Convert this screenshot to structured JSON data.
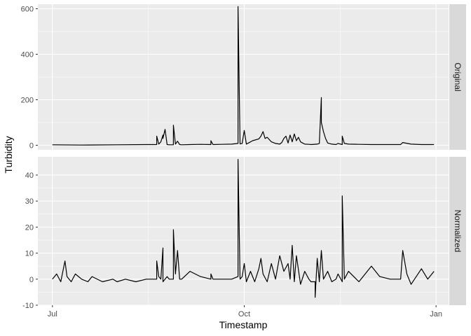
{
  "colors": {
    "panel_background": "#ebebeb",
    "strip_background": "#d9d9d9",
    "grid_major": "#ffffff",
    "line": "#000000"
  },
  "chart_data": {
    "type": "line",
    "facet_layout": "vertical, strip labels on right",
    "xlabel": "Timestamp",
    "ylabel": "Turbidity",
    "x_ticks": [
      "Jul",
      "Oct",
      "Jan"
    ],
    "grid": true,
    "panels": [
      {
        "strip_label": "Original",
        "ylim": [
          -20,
          620
        ],
        "y_ticks": [
          0,
          200,
          400,
          600
        ],
        "series": [
          {
            "x": [
              "2023-07-01",
              "2023-07-15",
              "2023-08-01",
              "2023-08-15",
              "2023-08-20",
              "2023-08-20",
              "2023-08-21",
              "2023-08-22",
              "2023-08-23",
              "2023-08-23",
              "2023-08-24",
              "2023-08-25",
              "2023-08-26",
              "2023-08-28",
              "2023-08-28",
              "2023-08-29",
              "2023-08-30",
              "2023-08-31",
              "2023-09-01",
              "2023-09-05",
              "2023-09-10",
              "2023-09-15",
              "2023-09-15",
              "2023-09-16",
              "2023-09-20",
              "2023-09-25",
              "2023-09-28",
              "2023-09-28",
              "2023-09-29",
              "2023-09-30",
              "2023-10-01",
              "2023-10-02",
              "2023-10-03",
              "2023-10-05",
              "2023-10-08",
              "2023-10-09",
              "2023-10-10",
              "2023-10-11",
              "2023-10-12",
              "2023-10-14",
              "2023-10-16",
              "2023-10-18",
              "2023-10-19",
              "2023-10-20",
              "2023-10-21",
              "2023-10-22",
              "2023-10-23",
              "2023-10-24",
              "2023-10-25",
              "2023-10-26",
              "2023-10-27",
              "2023-10-28",
              "2023-10-29",
              "2023-10-30",
              "2023-11-01",
              "2023-11-02",
              "2023-11-05",
              "2023-11-06",
              "2023-11-07",
              "2023-11-07",
              "2023-11-08",
              "2023-11-09",
              "2023-11-10",
              "2023-11-12",
              "2023-11-14",
              "2023-11-15",
              "2023-11-17",
              "2023-11-17",
              "2023-11-18",
              "2023-11-20",
              "2023-11-25",
              "2023-12-01",
              "2023-12-10",
              "2023-12-15",
              "2023-12-16",
              "2023-12-20",
              "2023-12-25",
              "2023-12-31"
            ],
            "y": [
              2,
              1,
              2,
              3,
              3,
              40,
              5,
              15,
              45,
              30,
              70,
              3,
              2,
              2,
              88,
              5,
              18,
              3,
              2,
              3,
              4,
              3,
              20,
              3,
              4,
              5,
              8,
              610,
              6,
              8,
              65,
              5,
              10,
              20,
              28,
              40,
              60,
              30,
              35,
              15,
              8,
              5,
              12,
              30,
              40,
              10,
              45,
              15,
              50,
              20,
              35,
              15,
              10,
              5,
              4,
              3,
              5,
              8,
              210,
              100,
              60,
              30,
              10,
              5,
              3,
              8,
              3,
              40,
              8,
              5,
              4,
              3,
              3,
              3,
              12,
              5,
              3,
              3
            ]
          }
        ]
      },
      {
        "strip_label": "Normalized",
        "ylim": [
          -10,
          47
        ],
        "y_ticks": [
          -10,
          0,
          10,
          20,
          30,
          40
        ],
        "series": [
          {
            "x": [
              "2023-07-01",
              "2023-07-03",
              "2023-07-05",
              "2023-07-07",
              "2023-07-08",
              "2023-07-10",
              "2023-07-12",
              "2023-07-15",
              "2023-07-18",
              "2023-07-20",
              "2023-07-25",
              "2023-07-30",
              "2023-08-01",
              "2023-08-05",
              "2023-08-10",
              "2023-08-15",
              "2023-08-20",
              "2023-08-20",
              "2023-08-21",
              "2023-08-22",
              "2023-08-23",
              "2023-08-23",
              "2023-08-24",
              "2023-08-25",
              "2023-08-26",
              "2023-08-28",
              "2023-08-28",
              "2023-08-29",
              "2023-08-30",
              "2023-08-31",
              "2023-09-01",
              "2023-09-05",
              "2023-09-10",
              "2023-09-15",
              "2023-09-15",
              "2023-09-16",
              "2023-09-20",
              "2023-09-25",
              "2023-09-28",
              "2023-09-28",
              "2023-09-29",
              "2023-09-30",
              "2023-10-01",
              "2023-10-02",
              "2023-10-04",
              "2023-10-06",
              "2023-10-08",
              "2023-10-09",
              "2023-10-10",
              "2023-10-12",
              "2023-10-14",
              "2023-10-16",
              "2023-10-18",
              "2023-10-20",
              "2023-10-22",
              "2023-10-23",
              "2023-10-24",
              "2023-10-25",
              "2023-10-26",
              "2023-10-28",
              "2023-10-30",
              "2023-11-01",
              "2023-11-02",
              "2023-11-04",
              "2023-11-04",
              "2023-11-05",
              "2023-11-06",
              "2023-11-07",
              "2023-11-08",
              "2023-11-10",
              "2023-11-12",
              "2023-11-14",
              "2023-11-15",
              "2023-11-17",
              "2023-11-17",
              "2023-11-18",
              "2023-11-20",
              "2023-11-25",
              "2023-12-01",
              "2023-12-05",
              "2023-12-10",
              "2023-12-15",
              "2023-12-16",
              "2023-12-18",
              "2023-12-20",
              "2023-12-25",
              "2023-12-28",
              "2023-12-31"
            ],
            "y": [
              0,
              2,
              -1,
              7,
              1,
              -1,
              2,
              0,
              -1,
              1,
              -1,
              0,
              -1,
              0,
              -1,
              0,
              0,
              7,
              1,
              0,
              12,
              -1,
              0,
              1,
              0,
              0,
              19,
              2,
              11,
              0,
              0,
              3,
              1,
              0,
              2,
              0,
              0,
              0,
              1,
              46,
              0,
              1,
              6,
              -1,
              3,
              -1,
              4,
              8,
              2,
              -1,
              6,
              0,
              9,
              3,
              6,
              0,
              13,
              -1,
              9,
              -2,
              3,
              0,
              -1,
              -1,
              -7,
              8,
              -1,
              11,
              0,
              3,
              -1,
              0,
              2,
              -1,
              32,
              0,
              3,
              -1,
              5,
              1,
              0,
              0,
              11,
              2,
              -2,
              4,
              0,
              3
            ]
          }
        ]
      }
    ]
  }
}
